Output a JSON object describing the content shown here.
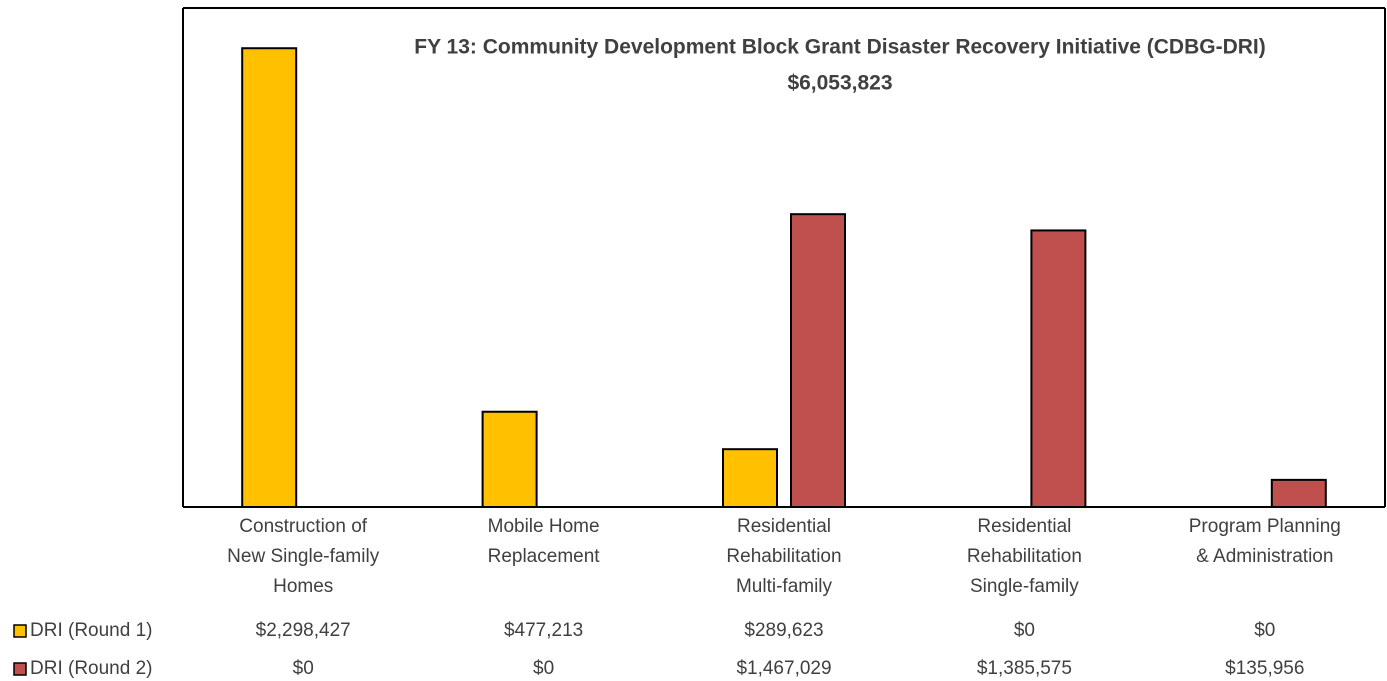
{
  "chart_data": {
    "type": "bar",
    "title": "FY 13: Community Development Block Grant Disaster Recovery Initiative (CDBG-DRI)",
    "subtitle": "$6,053,823",
    "categories": [
      "Construction of\nNew Single-family\nHomes",
      "Mobile Home\nReplacement",
      "Residential\nRehabilitation\nMulti-family",
      "Residential\nRehabilitation\nSingle-family",
      "Program Planning\n& Administration"
    ],
    "series": [
      {
        "name": "DRI (Round 1)",
        "color": "#ffc000",
        "values": [
          2298427,
          477213,
          289623,
          0,
          0
        ],
        "value_labels": [
          "$2,298,427",
          "$477,213",
          "$289,623",
          "$0",
          "$0"
        ]
      },
      {
        "name": "DRI (Round 2)",
        "color": "#c0504d",
        "values": [
          0,
          0,
          1467029,
          1385575,
          135956
        ],
        "value_labels": [
          "$0",
          "$0",
          "$1,467,029",
          "$1,385,575",
          "$135,956"
        ]
      }
    ],
    "ylim": [
      0,
      2500000
    ]
  }
}
